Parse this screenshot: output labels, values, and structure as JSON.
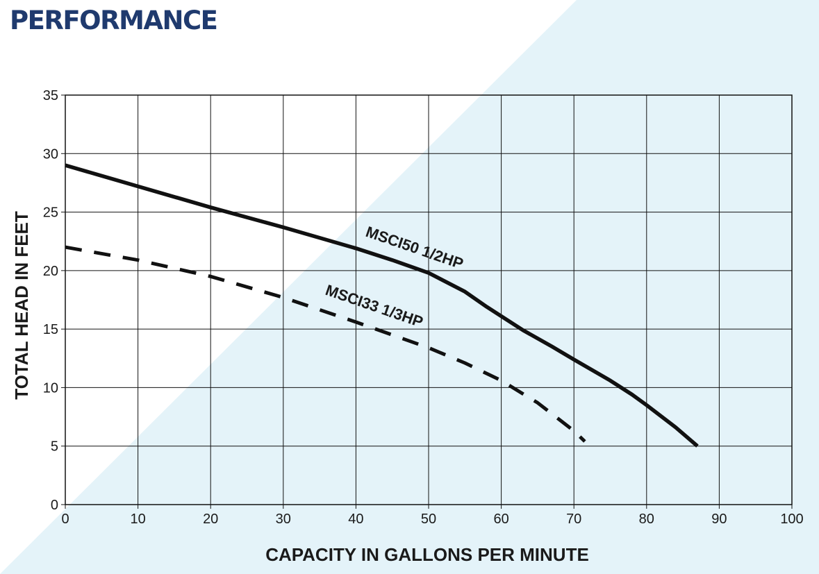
{
  "page": {
    "title": "PERFORMANCE"
  },
  "colors": {
    "title": "#1f3a6e",
    "background_accent": "#e4f3f9",
    "grid": "#111111",
    "line": "#111111"
  },
  "chart_data": {
    "type": "line",
    "title": "",
    "xlabel": "CAPACITY IN GALLONS PER MINUTE",
    "ylabel": "TOTAL HEAD IN FEET",
    "xlim": [
      0,
      100
    ],
    "ylim": [
      0,
      35
    ],
    "xticks": [
      0,
      10,
      20,
      30,
      40,
      50,
      60,
      70,
      80,
      90,
      100
    ],
    "yticks": [
      0,
      5,
      10,
      15,
      20,
      25,
      30,
      35
    ],
    "grid": true,
    "series": [
      {
        "name": "MSCI50 1/2HP",
        "style": "solid",
        "x": [
          0,
          10,
          20,
          30,
          40,
          45,
          50,
          55,
          58,
          60,
          63,
          67,
          70,
          75,
          78,
          80,
          84,
          87
        ],
        "y": [
          29,
          27.2,
          25.4,
          23.7,
          21.9,
          20.9,
          19.8,
          18.2,
          16.9,
          16.1,
          14.9,
          13.5,
          12.4,
          10.6,
          9.4,
          8.5,
          6.6,
          5
        ]
      },
      {
        "name": "MSCI33 1/3HP",
        "style": "dashed",
        "x": [
          0,
          10,
          20,
          30,
          40,
          50,
          55,
          60,
          65,
          70,
          71.5
        ],
        "y": [
          22,
          20.9,
          19.5,
          17.7,
          15.6,
          13.4,
          12.1,
          10.6,
          8.7,
          6.3,
          5.4
        ]
      }
    ]
  }
}
